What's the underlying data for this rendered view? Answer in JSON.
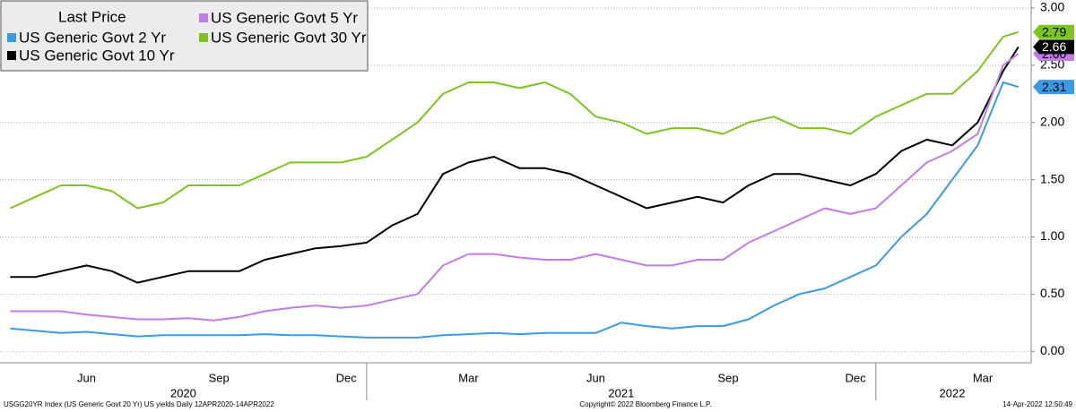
{
  "chart_data": {
    "type": "line",
    "legend_title": "Last Price",
    "x": [
      2020.3,
      2020.35,
      2020.4,
      2020.45,
      2020.5,
      2020.55,
      2020.6,
      2020.65,
      2020.7,
      2020.75,
      2020.8,
      2020.85,
      2020.9,
      2020.95,
      2021.0,
      2021.05,
      2021.1,
      2021.15,
      2021.2,
      2021.25,
      2021.3,
      2021.35,
      2021.4,
      2021.45,
      2021.5,
      2021.55,
      2021.6,
      2021.65,
      2021.7,
      2021.75,
      2021.8,
      2021.85,
      2021.9,
      2021.95,
      2022.0,
      2022.05,
      2022.1,
      2022.15,
      2022.2,
      2022.25,
      2022.28
    ],
    "series": [
      {
        "name": "US Generic Govt 2 Yr",
        "color": "#3a9ae8",
        "values": [
          0.2,
          0.18,
          0.16,
          0.17,
          0.15,
          0.13,
          0.14,
          0.14,
          0.14,
          0.14,
          0.15,
          0.14,
          0.14,
          0.13,
          0.12,
          0.12,
          0.12,
          0.14,
          0.15,
          0.16,
          0.15,
          0.16,
          0.16,
          0.16,
          0.25,
          0.22,
          0.2,
          0.22,
          0.22,
          0.28,
          0.4,
          0.5,
          0.55,
          0.65,
          0.75,
          1.0,
          1.2,
          1.5,
          1.8,
          2.35,
          2.31
        ],
        "value_labels": [
          null,
          null,
          null,
          null,
          null,
          null,
          null,
          null,
          null,
          null,
          null,
          null,
          null,
          null,
          null,
          null,
          null,
          null,
          null,
          null,
          null,
          null,
          null,
          null,
          null,
          null,
          null,
          null,
          null,
          null,
          null,
          null,
          null,
          null,
          null,
          null,
          null,
          null,
          null,
          null,
          "2.31"
        ]
      },
      {
        "name": "US Generic Govt 5 Yr",
        "color": "#c27ce8",
        "values": [
          0.35,
          0.35,
          0.35,
          0.32,
          0.3,
          0.28,
          0.28,
          0.29,
          0.27,
          0.3,
          0.35,
          0.38,
          0.4,
          0.38,
          0.4,
          0.45,
          0.5,
          0.75,
          0.85,
          0.85,
          0.82,
          0.8,
          0.8,
          0.85,
          0.8,
          0.75,
          0.75,
          0.8,
          0.8,
          0.95,
          1.05,
          1.15,
          1.25,
          1.2,
          1.25,
          1.45,
          1.65,
          1.75,
          1.9,
          2.5,
          2.6
        ],
        "value_labels": [
          null,
          null,
          null,
          null,
          null,
          null,
          null,
          null,
          null,
          null,
          null,
          null,
          null,
          null,
          null,
          null,
          null,
          null,
          null,
          null,
          null,
          null,
          null,
          null,
          null,
          null,
          null,
          null,
          null,
          null,
          null,
          null,
          null,
          null,
          null,
          null,
          null,
          null,
          null,
          null,
          "2.60"
        ]
      },
      {
        "name": "US Generic Govt 10 Yr",
        "color": "#000000",
        "values": [
          0.65,
          0.65,
          0.7,
          0.75,
          0.7,
          0.6,
          0.65,
          0.7,
          0.7,
          0.7,
          0.8,
          0.85,
          0.9,
          0.92,
          0.95,
          1.1,
          1.2,
          1.55,
          1.65,
          1.7,
          1.6,
          1.6,
          1.55,
          1.45,
          1.35,
          1.25,
          1.3,
          1.35,
          1.3,
          1.45,
          1.55,
          1.55,
          1.5,
          1.45,
          1.55,
          1.75,
          1.85,
          1.8,
          2.0,
          2.45,
          2.66
        ],
        "value_labels": [
          null,
          null,
          null,
          null,
          null,
          null,
          null,
          null,
          null,
          null,
          null,
          null,
          null,
          null,
          null,
          null,
          null,
          null,
          null,
          null,
          null,
          null,
          null,
          null,
          null,
          null,
          null,
          null,
          null,
          null,
          null,
          null,
          null,
          null,
          null,
          null,
          null,
          null,
          null,
          null,
          "2.66"
        ]
      },
      {
        "name": "US Generic Govt 30 Yr",
        "color": "#7cc520",
        "values": [
          1.25,
          1.35,
          1.45,
          1.45,
          1.4,
          1.25,
          1.3,
          1.45,
          1.45,
          1.45,
          1.55,
          1.65,
          1.65,
          1.65,
          1.7,
          1.85,
          2.0,
          2.25,
          2.35,
          2.35,
          2.3,
          2.35,
          2.25,
          2.05,
          2.0,
          1.9,
          1.95,
          1.95,
          1.9,
          2.0,
          2.05,
          1.95,
          1.95,
          1.9,
          2.05,
          2.15,
          2.25,
          2.25,
          2.45,
          2.75,
          2.79
        ],
        "value_labels": [
          null,
          null,
          null,
          null,
          null,
          null,
          null,
          null,
          null,
          null,
          null,
          null,
          null,
          null,
          null,
          null,
          null,
          null,
          null,
          null,
          null,
          null,
          null,
          null,
          null,
          null,
          null,
          null,
          null,
          null,
          null,
          null,
          null,
          null,
          null,
          null,
          null,
          null,
          null,
          null,
          "2.79"
        ]
      }
    ],
    "xlim": [
      2020.28,
      2022.305
    ],
    "xticks": [
      {
        "value": 2020.45,
        "label": "Jun"
      },
      {
        "value": 2020.71,
        "label": "Sep"
      },
      {
        "value": 2020.96,
        "label": "Dec"
      },
      {
        "value": 2021.2,
        "label": "Mar"
      },
      {
        "value": 2021.45,
        "label": "Jun"
      },
      {
        "value": 2021.71,
        "label": "Sep"
      },
      {
        "value": 2021.96,
        "label": "Dec"
      },
      {
        "value": 2022.21,
        "label": "Mar"
      }
    ],
    "year_labels": [
      {
        "value": 2020.64,
        "label": "2020"
      },
      {
        "value": 2021.5,
        "label": "2021"
      },
      {
        "value": 2022.15,
        "label": "2022"
      }
    ],
    "ylim": [
      -0.1,
      3.07
    ],
    "yticks": [
      {
        "value": 0,
        "label": "0.00"
      },
      {
        "value": 0.5,
        "label": "0.50"
      },
      {
        "value": 1,
        "label": "1.00"
      },
      {
        "value": 1.5,
        "label": "1.50"
      },
      {
        "value": 2,
        "label": "2.00"
      },
      {
        "value": 2.5,
        "label": "2.50"
      },
      {
        "value": 3,
        "label": "3.00"
      }
    ],
    "grid": true,
    "footer_left": "USGG20YR Index (US Generic Govt 20 Yr) US yields Daily 12APR2020-14APR2022",
    "footer_center": "Copyright© 2022 Bloomberg Finance L.P.",
    "footer_right": "14-Apr-2022 12:50:49"
  }
}
